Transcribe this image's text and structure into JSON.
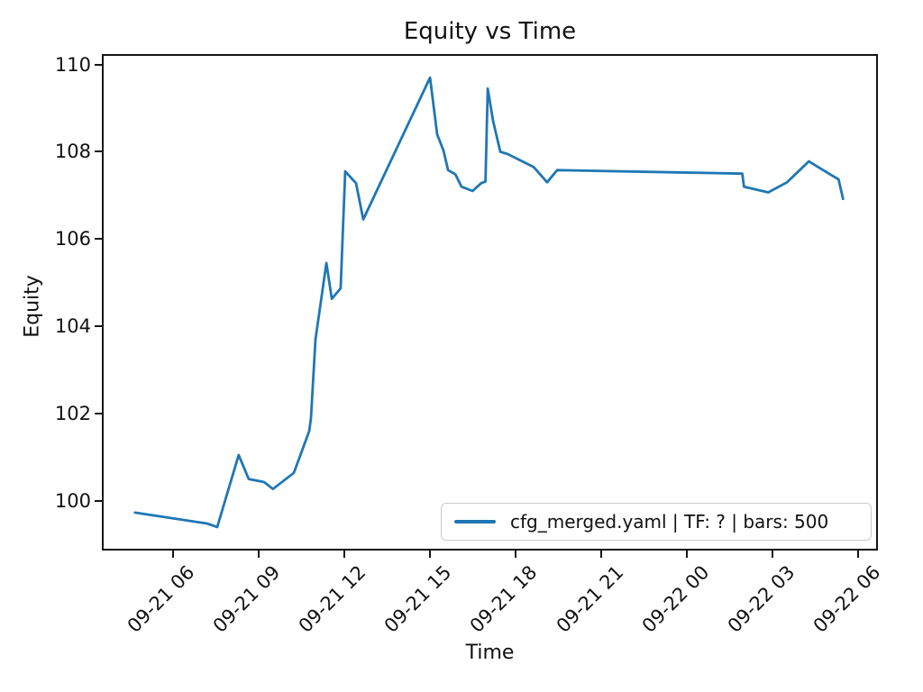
{
  "chart_data": {
    "type": "line",
    "title": "Equity vs Time",
    "xlabel": "Time",
    "ylabel": "Equity",
    "legend_label": "cfg_merged.yaml | TF: ? | bars: 500",
    "legend_position": "lower right",
    "grid": false,
    "line_color": "#1f77b4",
    "axis_color": "#151515",
    "x_domain_hours": [
      3.52,
      30.69
    ],
    "ylim": [
      98.86,
      110.24
    ],
    "x_ticks_hours": [
      6,
      9,
      12,
      15,
      18,
      21,
      24,
      27,
      30
    ],
    "x_ticklabels": [
      "09-21 06",
      "09-21 09",
      "09-21 12",
      "09-21 15",
      "09-21 18",
      "09-21 21",
      "09-22 00",
      "09-22 03",
      "09-22 06"
    ],
    "y_ticks": [
      100,
      102,
      104,
      106,
      108,
      110
    ],
    "series": [
      {
        "name": "cfg_merged.yaml | TF: ? | bars: 500",
        "color": "#1f77b4",
        "points": [
          [
            4.68,
            99.73
          ],
          [
            7.2,
            99.48
          ],
          [
            7.56,
            99.4
          ],
          [
            8.31,
            101.05
          ],
          [
            8.66,
            100.5
          ],
          [
            9.2,
            100.43
          ],
          [
            9.51,
            100.27
          ],
          [
            10.24,
            100.64
          ],
          [
            10.78,
            101.6
          ],
          [
            10.84,
            101.9
          ],
          [
            11.0,
            103.7
          ],
          [
            11.38,
            105.45
          ],
          [
            11.57,
            104.63
          ],
          [
            11.88,
            104.87
          ],
          [
            12.04,
            107.55
          ],
          [
            12.42,
            107.28
          ],
          [
            12.67,
            106.45
          ],
          [
            15.01,
            109.7
          ],
          [
            15.26,
            108.4
          ],
          [
            15.48,
            108.03
          ],
          [
            15.64,
            107.58
          ],
          [
            15.9,
            107.48
          ],
          [
            16.11,
            107.2
          ],
          [
            16.5,
            107.1
          ],
          [
            16.8,
            107.28
          ],
          [
            16.95,
            107.32
          ],
          [
            17.03,
            109.45
          ],
          [
            17.22,
            108.7
          ],
          [
            17.47,
            108.0
          ],
          [
            17.72,
            107.95
          ],
          [
            18.64,
            107.65
          ],
          [
            19.11,
            107.3
          ],
          [
            19.46,
            107.58
          ],
          [
            25.94,
            107.5
          ],
          [
            26.0,
            107.2
          ],
          [
            26.85,
            107.07
          ],
          [
            27.51,
            107.3
          ],
          [
            28.27,
            107.78
          ],
          [
            29.0,
            107.49
          ],
          [
            29.31,
            107.37
          ],
          [
            29.47,
            106.92
          ]
        ]
      }
    ]
  }
}
